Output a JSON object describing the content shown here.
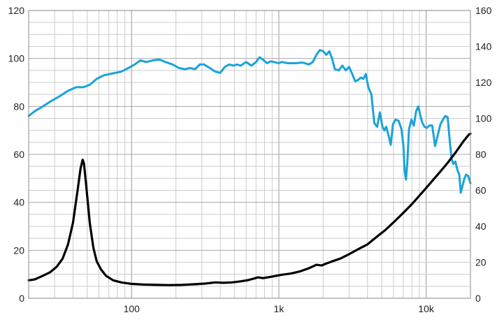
{
  "chart_data": {
    "type": "line",
    "x_scale": "log",
    "xlim": [
      20,
      20000
    ],
    "ylim_left": [
      0,
      120
    ],
    "ylim_right": [
      0,
      160
    ],
    "grid": true,
    "legend": "none",
    "x_tick_labels": [
      {
        "value": 100,
        "label": "100"
      },
      {
        "value": 1000,
        "label": "1k"
      },
      {
        "value": 10000,
        "label": "10k"
      }
    ],
    "left_tick_labels": [
      "0",
      "20",
      "40",
      "60",
      "80",
      "100",
      "120"
    ],
    "right_tick_labels": [
      "0",
      "20",
      "40",
      "60",
      "80",
      "100",
      "120",
      "140",
      "160"
    ],
    "series": [
      {
        "axis": "left",
        "color": "#1aa3d9",
        "points": [
          [
            20,
            76
          ],
          [
            22,
            78
          ],
          [
            25,
            80
          ],
          [
            28,
            82
          ],
          [
            32,
            84
          ],
          [
            37,
            86.5
          ],
          [
            42,
            88
          ],
          [
            47,
            88
          ],
          [
            52,
            89
          ],
          [
            58,
            91.5
          ],
          [
            65,
            93
          ],
          [
            75,
            93.8
          ],
          [
            85,
            94.5
          ],
          [
            95,
            96
          ],
          [
            105,
            97.5
          ],
          [
            115,
            99.2
          ],
          [
            125,
            98.5
          ],
          [
            140,
            99.2
          ],
          [
            155,
            99.5
          ],
          [
            170,
            98.5
          ],
          [
            190,
            97.5
          ],
          [
            210,
            96
          ],
          [
            230,
            95.5
          ],
          [
            250,
            96
          ],
          [
            270,
            95.5
          ],
          [
            290,
            97.5
          ],
          [
            310,
            97.5
          ],
          [
            340,
            96
          ],
          [
            370,
            94.5
          ],
          [
            400,
            94
          ],
          [
            430,
            96.5
          ],
          [
            460,
            97.5
          ],
          [
            490,
            97
          ],
          [
            520,
            97.5
          ],
          [
            550,
            97
          ],
          [
            600,
            98.5
          ],
          [
            650,
            97
          ],
          [
            700,
            98.5
          ],
          [
            740,
            100.5
          ],
          [
            780,
            99.5
          ],
          [
            830,
            98
          ],
          [
            880,
            98.8
          ],
          [
            930,
            98.5
          ],
          [
            990,
            98
          ],
          [
            1050,
            98.5
          ],
          [
            1150,
            98
          ],
          [
            1300,
            98
          ],
          [
            1450,
            98.3
          ],
          [
            1600,
            97.5
          ],
          [
            1700,
            98.5
          ],
          [
            1800,
            101.5
          ],
          [
            1900,
            103.5
          ],
          [
            2000,
            103
          ],
          [
            2100,
            101.5
          ],
          [
            2200,
            103
          ],
          [
            2300,
            100
          ],
          [
            2400,
            95.5
          ],
          [
            2550,
            95
          ],
          [
            2700,
            97
          ],
          [
            2850,
            95
          ],
          [
            3000,
            96.5
          ],
          [
            3150,
            93.5
          ],
          [
            3300,
            90.5
          ],
          [
            3450,
            91
          ],
          [
            3600,
            92
          ],
          [
            3750,
            91.5
          ],
          [
            3900,
            93.5
          ],
          [
            4050,
            88
          ],
          [
            4250,
            85
          ],
          [
            4450,
            73
          ],
          [
            4650,
            71.5
          ],
          [
            4850,
            77.5
          ],
          [
            5050,
            71.5
          ],
          [
            5200,
            70
          ],
          [
            5350,
            71.5
          ],
          [
            5550,
            68
          ],
          [
            5750,
            64
          ],
          [
            5950,
            72.5
          ],
          [
            6200,
            74.5
          ],
          [
            6500,
            74
          ],
          [
            6800,
            70.5
          ],
          [
            7000,
            64
          ],
          [
            7150,
            53
          ],
          [
            7300,
            49.5
          ],
          [
            7450,
            56.5
          ],
          [
            7650,
            70.5
          ],
          [
            7950,
            74.5
          ],
          [
            8250,
            72
          ],
          [
            8550,
            78
          ],
          [
            8850,
            80
          ],
          [
            9150,
            76
          ],
          [
            9450,
            73
          ],
          [
            9750,
            71.5
          ],
          [
            10100,
            71
          ],
          [
            10500,
            72
          ],
          [
            11000,
            72
          ],
          [
            11500,
            63.5
          ],
          [
            12000,
            68
          ],
          [
            12500,
            72.5
          ],
          [
            13000,
            74.5
          ],
          [
            13500,
            76
          ],
          [
            14000,
            75.5
          ],
          [
            14500,
            65
          ],
          [
            14900,
            58
          ],
          [
            15300,
            56
          ],
          [
            15800,
            57
          ],
          [
            16300,
            53.5
          ],
          [
            16800,
            51.5
          ],
          [
            17200,
            44
          ],
          [
            17700,
            47
          ],
          [
            18200,
            50
          ],
          [
            18700,
            51.5
          ],
          [
            19300,
            51
          ],
          [
            20000,
            48
          ]
        ]
      },
      {
        "axis": "right",
        "color": "#000000",
        "points": [
          [
            20,
            10
          ],
          [
            22,
            10.5
          ],
          [
            25,
            12.5
          ],
          [
            28,
            14.5
          ],
          [
            31,
            17.5
          ],
          [
            34,
            22
          ],
          [
            37,
            30
          ],
          [
            40,
            42
          ],
          [
            43,
            60
          ],
          [
            45,
            72
          ],
          [
            46.5,
            77
          ],
          [
            47.5,
            75
          ],
          [
            49,
            64
          ],
          [
            52,
            42
          ],
          [
            55,
            28
          ],
          [
            58,
            20.5
          ],
          [
            62,
            16
          ],
          [
            67,
            12.5
          ],
          [
            75,
            10
          ],
          [
            85,
            8.8
          ],
          [
            100,
            8
          ],
          [
            120,
            7.6
          ],
          [
            150,
            7.4
          ],
          [
            180,
            7.3
          ],
          [
            220,
            7.4
          ],
          [
            270,
            7.8
          ],
          [
            320,
            8.2
          ],
          [
            370,
            8.8
          ],
          [
            420,
            8.6
          ],
          [
            480,
            8.8
          ],
          [
            550,
            9.4
          ],
          [
            620,
            10.1
          ],
          [
            680,
            11
          ],
          [
            720,
            11.6
          ],
          [
            780,
            11.2
          ],
          [
            850,
            11.7
          ],
          [
            950,
            12.4
          ],
          [
            1050,
            13.1
          ],
          [
            1200,
            13.7
          ],
          [
            1400,
            15
          ],
          [
            1600,
            16.7
          ],
          [
            1800,
            18.6
          ],
          [
            1950,
            18.2
          ],
          [
            2050,
            19
          ],
          [
            2300,
            20.5
          ],
          [
            2600,
            22
          ],
          [
            3000,
            24.5
          ],
          [
            3500,
            27.5
          ],
          [
            4000,
            30
          ],
          [
            4600,
            34
          ],
          [
            5300,
            38
          ],
          [
            6100,
            42.7
          ],
          [
            7000,
            47.5
          ],
          [
            8000,
            52.3
          ],
          [
            9000,
            57
          ],
          [
            10000,
            61.3
          ],
          [
            11200,
            66
          ],
          [
            12500,
            70.5
          ],
          [
            14000,
            75.3
          ],
          [
            16000,
            81.5
          ],
          [
            18000,
            87.5
          ],
          [
            19500,
            91
          ],
          [
            20000,
            91.5
          ]
        ]
      }
    ]
  }
}
